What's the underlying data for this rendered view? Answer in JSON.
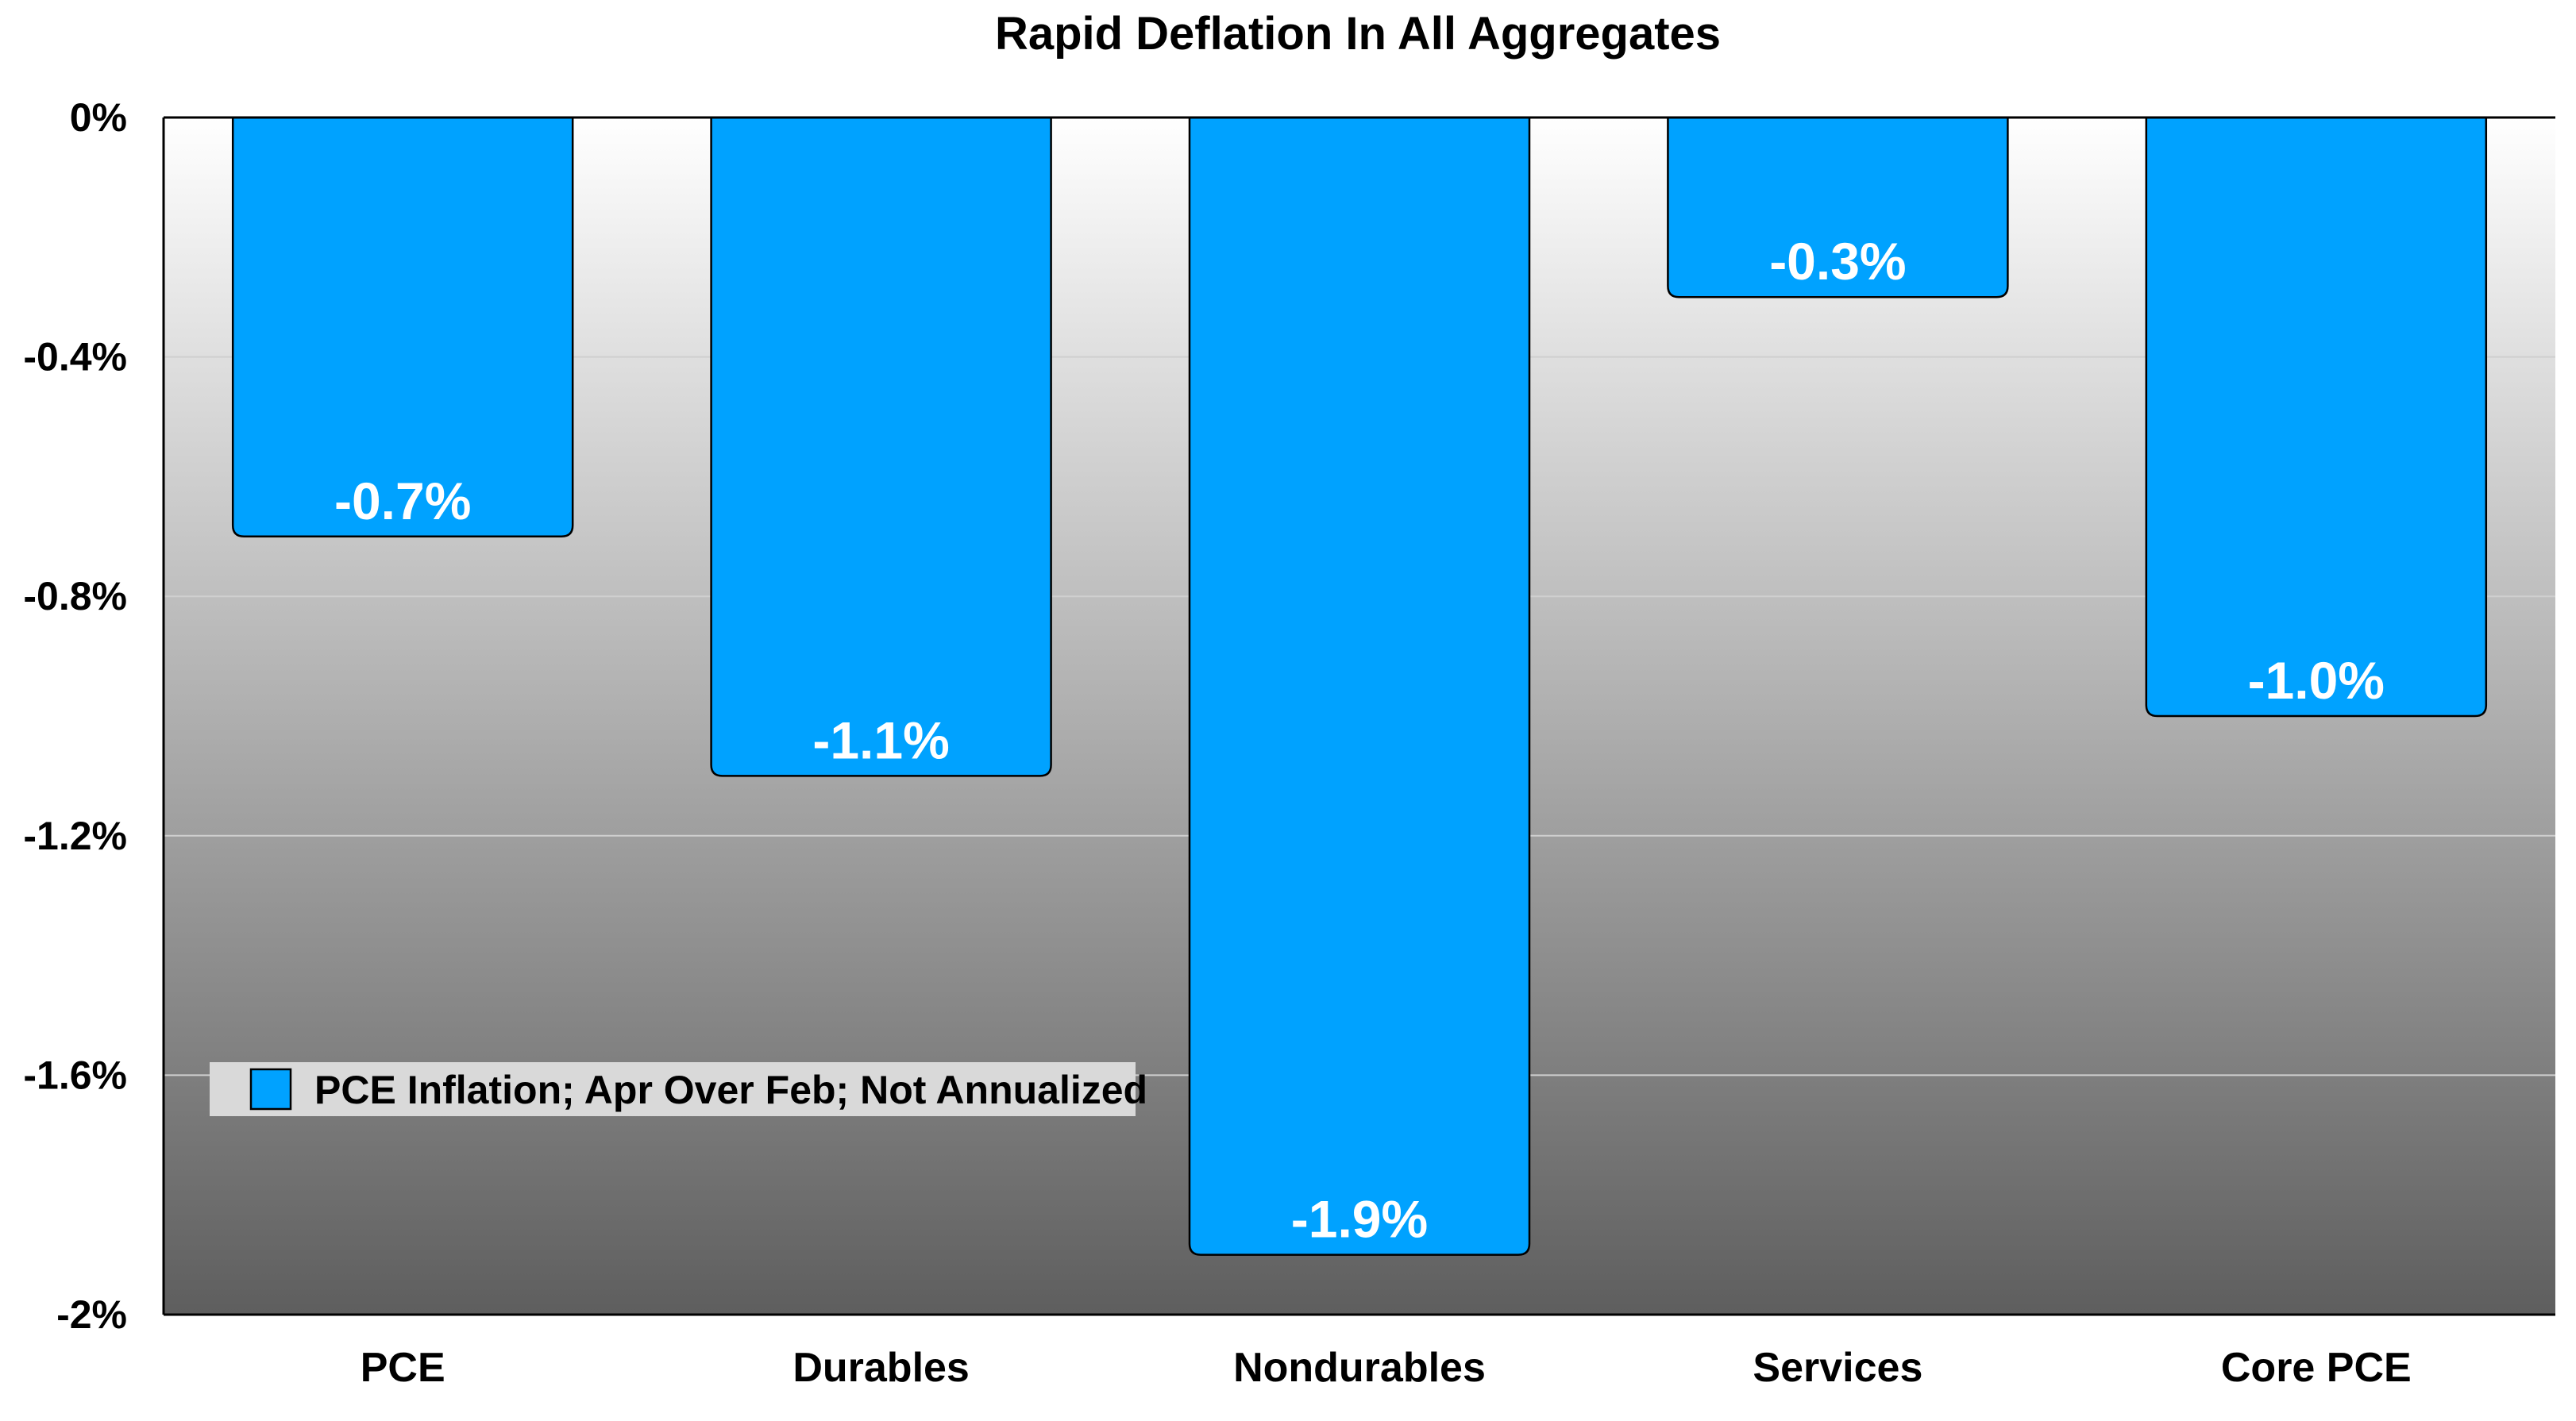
{
  "chart_data": {
    "type": "bar",
    "title": "Rapid Deflation In All Aggregates",
    "xlabel": "",
    "ylabel": "",
    "categories": [
      "PCE",
      "Durables",
      "Nondurables",
      "Services",
      "Core PCE"
    ],
    "series": [
      {
        "name": "PCE Inflation; Apr Over Feb; Not Annualized",
        "values": [
          -0.7,
          -1.1,
          -1.9,
          -0.3,
          -1.0
        ],
        "value_labels": [
          "-0.7%",
          "-1.1%",
          "-1.9%",
          "-0.3%",
          "-1.0%"
        ]
      }
    ],
    "ylim": [
      -2,
      0
    ],
    "yticks": [
      0,
      -0.4,
      -0.8,
      -1.2,
      -1.6,
      -2
    ],
    "ytick_labels": [
      "0%",
      "-0.4%",
      "-0.8%",
      "-1.2%",
      "-1.6%",
      "-2%"
    ],
    "grid": true,
    "legend_position": "lower-left",
    "colors": {
      "bar": "#00a2ff",
      "bar_stroke": "#000000",
      "background_top": "#ffffff",
      "background_bottom": "#5e5e5e",
      "legend_box": "#d9d9d9"
    }
  }
}
